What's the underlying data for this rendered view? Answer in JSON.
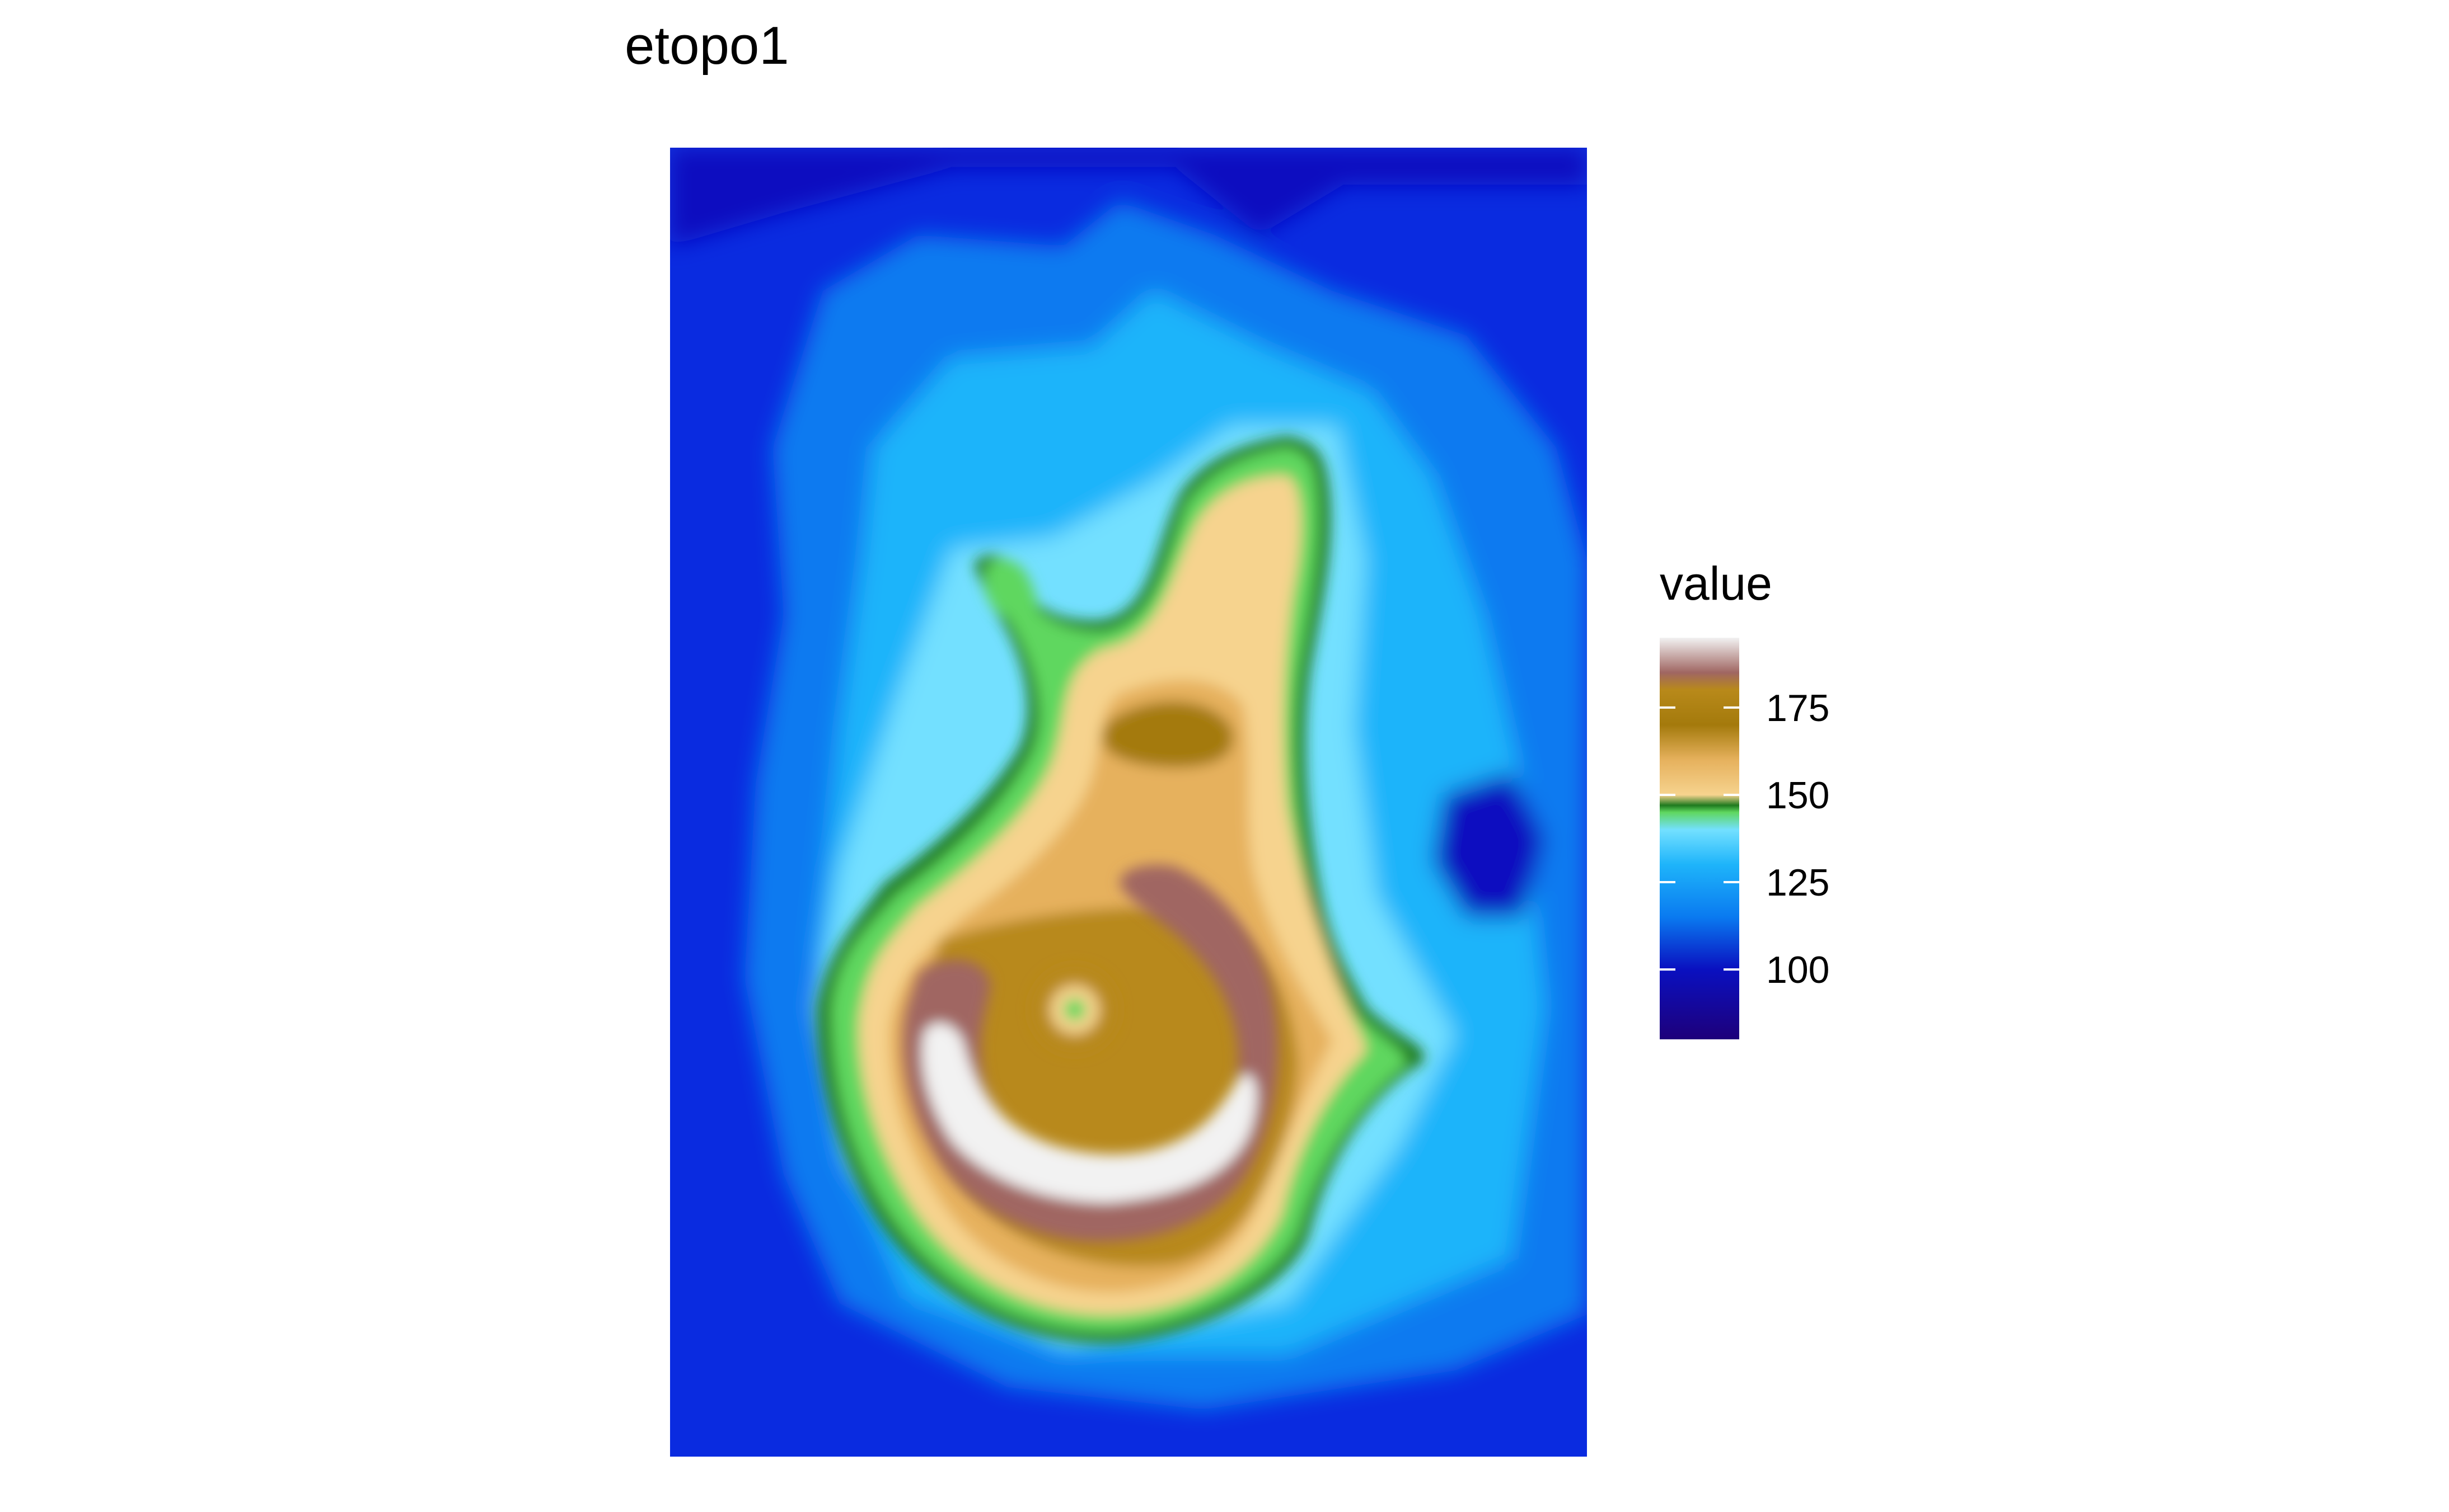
{
  "chart_data": {
    "type": "heatmap",
    "title": "etopo1",
    "xlabel": "",
    "ylabel": "",
    "value_range": [
      80,
      195
    ],
    "legend": {
      "title": "value",
      "position": "right",
      "ticks": [
        100,
        125,
        150,
        175
      ]
    },
    "colors": {
      "deep_water": "#1E007A",
      "water_low": "#0A10C0",
      "water": "#0A2BE0",
      "water_mid": "#0A7AF0",
      "water_light": "#1EB4FA",
      "water_shallow": "#73E0FF",
      "green_dark": "#1F7A1F",
      "green_light": "#5FD75F",
      "sand": "#F6D38E",
      "tan": "#E6B15D",
      "ochre": "#B8891A",
      "olive_brown": "#A47A0C",
      "mauve": "#A06662",
      "pink_gray": "#C79A98",
      "white": "#F2F2F2"
    }
  }
}
